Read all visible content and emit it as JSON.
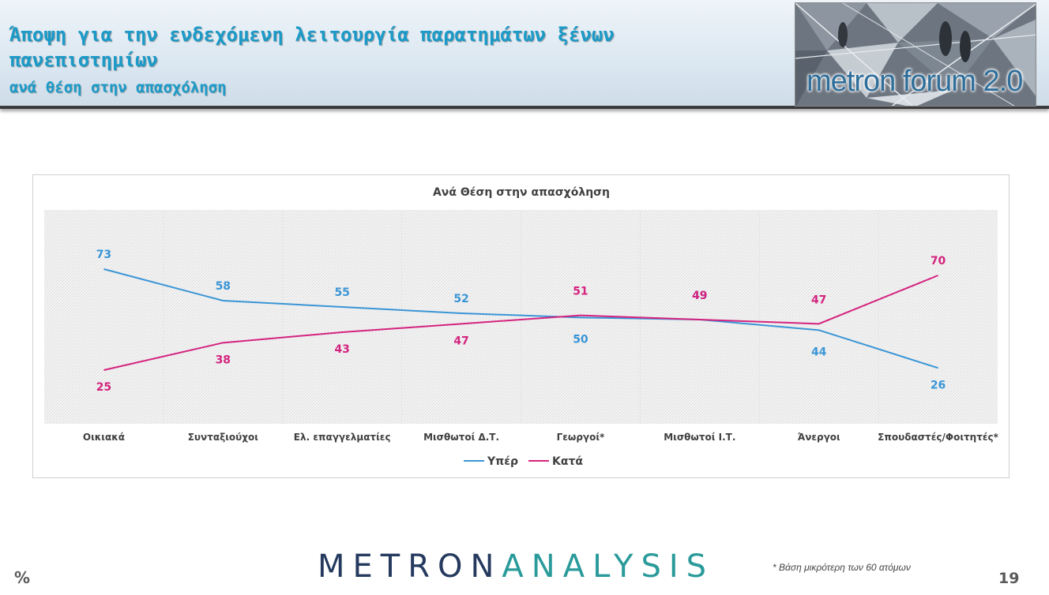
{
  "header": {
    "title": "Άποψη για την ενδεχόμενη λειτουργία παρατημάτων ξένων πανεπιστημίων",
    "subtitle": "ανά θέση στην απασχόληση",
    "logo_text": "metron forum 2.0"
  },
  "colors": {
    "title": "#1b9ac8",
    "series_yper": "#3a95d6",
    "series_kata": "#d4237f"
  },
  "chart_data": {
    "type": "line",
    "title": "Ανά Θέση στην απασχόληση",
    "categories": [
      "Οικιακά",
      "Συνταξιούχοι",
      "Ελ. επαγγελματίες",
      "Μισθωτοί Δ.Τ.",
      "Γεωργοί*",
      "Μισθωτοί Ι.Τ.",
      "Άνεργοι",
      "Σπουδαστές/Φοιτητές*"
    ],
    "series": [
      {
        "name": "Υπέρ",
        "values": [
          73,
          58,
          55,
          52,
          50,
          49,
          44,
          26
        ]
      },
      {
        "name": "Κατά",
        "values": [
          25,
          38,
          43,
          47,
          51,
          49,
          47,
          70
        ]
      }
    ],
    "legend": "bottom-center",
    "grid": false
  },
  "footer": {
    "brand_part1": "METRON",
    "brand_part2": "ANALYSIS",
    "footnote": "* Βάση μικρότερη των 60 ατόμων",
    "percent_symbol": "%",
    "page_number": "19"
  }
}
